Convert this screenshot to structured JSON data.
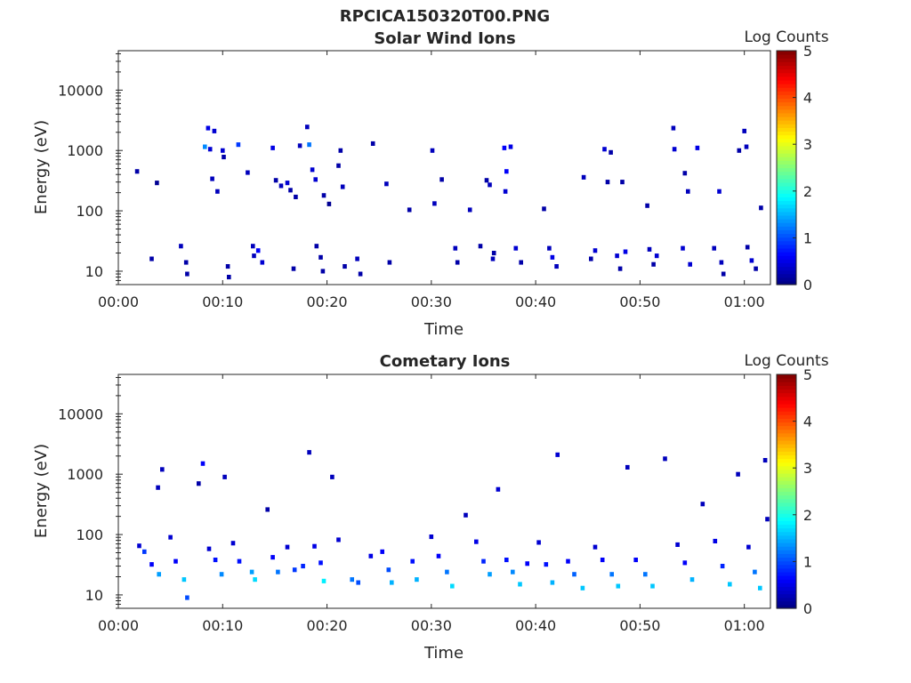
{
  "figure": {
    "title": "RPCICA150320T00.PNG"
  },
  "colormap": {
    "name": "jet",
    "stops": [
      "#00007f",
      "#0000ff",
      "#007fff",
      "#00ffff",
      "#7fff7f",
      "#ffff00",
      "#ff7f00",
      "#ff0000",
      "#7f0000"
    ]
  },
  "chart_data": [
    {
      "type": "heatmap",
      "title": "Solar Wind Ions",
      "xlabel": "Time",
      "ylabel": "Energy (eV)",
      "colorbar_label": "Log Counts",
      "xlim_minutes": [
        0,
        62.5
      ],
      "ylim_eV": [
        6,
        45000
      ],
      "y_scale": "log",
      "x_ticks": [
        "00:00",
        "00:10",
        "00:20",
        "00:30",
        "00:40",
        "00:50",
        "01:00"
      ],
      "y_ticks": [
        "10",
        "100",
        "1000",
        "10000"
      ],
      "clim": [
        0,
        5
      ],
      "colorbar_ticks": [
        "0",
        "1",
        "2",
        "3",
        "4",
        "5"
      ],
      "cells": [
        [
          1.8,
          450,
          0.2
        ],
        [
          3.2,
          16,
          0.2
        ],
        [
          3.7,
          290,
          0.1
        ],
        [
          6.0,
          26,
          0.3
        ],
        [
          6.5,
          14,
          0.2
        ],
        [
          6.6,
          9,
          0.2
        ],
        [
          8.3,
          1150,
          1.3
        ],
        [
          8.6,
          2350,
          0.5
        ],
        [
          8.8,
          1050,
          0.4
        ],
        [
          9.0,
          340,
          0.3
        ],
        [
          9.2,
          2100,
          0.4
        ],
        [
          9.5,
          210,
          0.3
        ],
        [
          10.0,
          1000,
          0.4
        ],
        [
          10.1,
          780,
          0.2
        ],
        [
          10.5,
          12,
          0.2
        ],
        [
          10.6,
          8,
          0.2
        ],
        [
          11.5,
          1250,
          0.9
        ],
        [
          12.4,
          430,
          0.3
        ],
        [
          12.9,
          26,
          0.3
        ],
        [
          13.0,
          18,
          0.3
        ],
        [
          13.4,
          22,
          0.6
        ],
        [
          13.8,
          14,
          0.4
        ],
        [
          14.8,
          1100,
          0.5
        ],
        [
          15.1,
          320,
          0.2
        ],
        [
          15.6,
          260,
          0.3
        ],
        [
          16.2,
          290,
          0.4
        ],
        [
          16.5,
          220,
          0.2
        ],
        [
          16.8,
          11,
          0.2
        ],
        [
          17.0,
          170,
          0.2
        ],
        [
          17.4,
          1200,
          0.3
        ],
        [
          18.1,
          2450,
          0.3
        ],
        [
          18.3,
          1250,
          1.2
        ],
        [
          18.6,
          480,
          0.4
        ],
        [
          18.9,
          330,
          0.4
        ],
        [
          19.0,
          26,
          0.2
        ],
        [
          19.4,
          17,
          0.2
        ],
        [
          19.6,
          10,
          0.2
        ],
        [
          19.7,
          180,
          0.2
        ],
        [
          20.2,
          130,
          0.1
        ],
        [
          21.1,
          560,
          0.2
        ],
        [
          21.3,
          1000,
          0.2
        ],
        [
          21.5,
          250,
          0.3
        ],
        [
          21.7,
          12,
          0.2
        ],
        [
          22.9,
          16,
          0.3
        ],
        [
          23.2,
          9,
          0.2
        ],
        [
          24.4,
          1300,
          0.2
        ],
        [
          25.7,
          280,
          0.3
        ],
        [
          26.0,
          14,
          0.2
        ],
        [
          27.9,
          104,
          0.2
        ],
        [
          30.1,
          1000,
          0.3
        ],
        [
          30.3,
          132,
          0.3
        ],
        [
          31.0,
          330,
          0.2
        ],
        [
          32.3,
          24,
          0.3
        ],
        [
          32.5,
          14,
          0.2
        ],
        [
          33.7,
          104,
          0.3
        ],
        [
          34.7,
          26,
          0.2
        ],
        [
          35.3,
          320,
          0.2
        ],
        [
          35.6,
          270,
          0.3
        ],
        [
          35.9,
          16,
          0.3
        ],
        [
          36.0,
          20,
          0.2
        ],
        [
          37.0,
          1100,
          0.6
        ],
        [
          37.1,
          210,
          0.4
        ],
        [
          37.2,
          450,
          0.6
        ],
        [
          37.6,
          1150,
          0.5
        ],
        [
          38.1,
          24,
          0.4
        ],
        [
          38.6,
          14,
          0.2
        ],
        [
          40.8,
          108,
          0.2
        ],
        [
          41.3,
          24,
          0.3
        ],
        [
          41.6,
          17,
          0.5
        ],
        [
          42.0,
          12,
          0.3
        ],
        [
          44.6,
          360,
          0.3
        ],
        [
          45.3,
          16,
          0.2
        ],
        [
          45.7,
          22,
          0.4
        ],
        [
          46.6,
          1050,
          0.4
        ],
        [
          46.9,
          300,
          0.2
        ],
        [
          47.2,
          930,
          0.2
        ],
        [
          47.8,
          18,
          0.4
        ],
        [
          48.1,
          11,
          0.2
        ],
        [
          48.3,
          300,
          0.2
        ],
        [
          48.6,
          21,
          0.5
        ],
        [
          50.7,
          122,
          0.2
        ],
        [
          50.9,
          23,
          0.3
        ],
        [
          51.3,
          13,
          0.2
        ],
        [
          51.6,
          18,
          0.4
        ],
        [
          53.2,
          2350,
          0.3
        ],
        [
          53.3,
          1050,
          0.4
        ],
        [
          54.1,
          24,
          0.4
        ],
        [
          54.3,
          420,
          0.2
        ],
        [
          54.6,
          210,
          0.3
        ],
        [
          54.8,
          13,
          0.4
        ],
        [
          55.5,
          1100,
          0.5
        ],
        [
          57.1,
          24,
          0.3
        ],
        [
          57.6,
          210,
          0.4
        ],
        [
          57.8,
          14,
          0.3
        ],
        [
          58.0,
          9,
          0.2
        ],
        [
          59.5,
          1000,
          0.2
        ],
        [
          60.0,
          2100,
          0.3
        ],
        [
          60.2,
          1150,
          0.3
        ],
        [
          60.3,
          25,
          0.2
        ],
        [
          60.7,
          15,
          0.4
        ],
        [
          61.1,
          11,
          0.2
        ],
        [
          61.6,
          112,
          0.2
        ]
      ]
    },
    {
      "type": "heatmap",
      "title": "Cometary Ions",
      "xlabel": "Time",
      "ylabel": "Energy (eV)",
      "colorbar_label": "Log Counts",
      "xlim_minutes": [
        0,
        62.5
      ],
      "ylim_eV": [
        6,
        45000
      ],
      "y_scale": "log",
      "x_ticks": [
        "00:00",
        "00:10",
        "00:20",
        "00:30",
        "00:40",
        "00:50",
        "01:00"
      ],
      "y_ticks": [
        "10",
        "100",
        "1000",
        "10000"
      ],
      "clim": [
        0,
        5
      ],
      "colorbar_ticks": [
        "0",
        "1",
        "2",
        "3",
        "4",
        "5"
      ],
      "cells": [
        [
          2.0,
          65,
          0.4
        ],
        [
          2.5,
          52,
          0.9
        ],
        [
          3.2,
          32,
          0.6
        ],
        [
          3.8,
          600,
          0.3
        ],
        [
          3.9,
          22,
          1.4
        ],
        [
          4.2,
          1200,
          0.3
        ],
        [
          5.0,
          90,
          0.4
        ],
        [
          5.5,
          36,
          0.6
        ],
        [
          6.3,
          18,
          1.6
        ],
        [
          6.6,
          9,
          1.0
        ],
        [
          7.7,
          700,
          0.2
        ],
        [
          8.1,
          1500,
          0.6
        ],
        [
          8.7,
          58,
          0.4
        ],
        [
          9.3,
          38,
          0.7
        ],
        [
          9.9,
          22,
          1.3
        ],
        [
          10.2,
          900,
          0.3
        ],
        [
          11.0,
          72,
          0.4
        ],
        [
          11.6,
          36,
          0.7
        ],
        [
          12.8,
          24,
          1.4
        ],
        [
          13.1,
          18,
          1.7
        ],
        [
          14.3,
          260,
          0.2
        ],
        [
          14.8,
          42,
          0.6
        ],
        [
          15.3,
          24,
          1.2
        ],
        [
          16.2,
          62,
          0.4
        ],
        [
          16.9,
          26,
          0.9
        ],
        [
          17.7,
          30,
          0.8
        ],
        [
          18.3,
          2300,
          0.3
        ],
        [
          18.8,
          64,
          0.5
        ],
        [
          19.4,
          34,
          0.7
        ],
        [
          19.7,
          17,
          1.8
        ],
        [
          20.5,
          900,
          0.3
        ],
        [
          21.1,
          82,
          0.4
        ],
        [
          22.4,
          18,
          1.2
        ],
        [
          23.0,
          16,
          1.0
        ],
        [
          24.2,
          44,
          0.5
        ],
        [
          25.3,
          52,
          0.6
        ],
        [
          25.9,
          26,
          1.0
        ],
        [
          26.2,
          16,
          1.5
        ],
        [
          28.2,
          36,
          0.7
        ],
        [
          28.6,
          18,
          1.5
        ],
        [
          30.0,
          92,
          0.4
        ],
        [
          30.7,
          44,
          0.6
        ],
        [
          31.5,
          24,
          1.2
        ],
        [
          32.0,
          14,
          1.7
        ],
        [
          33.3,
          210,
          0.3
        ],
        [
          34.3,
          76,
          0.5
        ],
        [
          35.0,
          36,
          0.8
        ],
        [
          35.6,
          22,
          1.4
        ],
        [
          36.4,
          560,
          0.4
        ],
        [
          37.2,
          38,
          0.7
        ],
        [
          37.8,
          24,
          1.3
        ],
        [
          38.5,
          15,
          1.6
        ],
        [
          39.2,
          33,
          0.6
        ],
        [
          40.3,
          74,
          0.4
        ],
        [
          41.0,
          32,
          0.7
        ],
        [
          41.6,
          16,
          1.5
        ],
        [
          42.1,
          2100,
          0.4
        ],
        [
          43.1,
          36,
          0.6
        ],
        [
          43.7,
          22,
          1.1
        ],
        [
          44.5,
          13,
          1.6
        ],
        [
          45.7,
          62,
          0.4
        ],
        [
          46.4,
          38,
          0.6
        ],
        [
          47.3,
          22,
          1.2
        ],
        [
          47.9,
          14,
          1.6
        ],
        [
          48.8,
          1300,
          0.3
        ],
        [
          49.6,
          38,
          0.6
        ],
        [
          50.5,
          22,
          1.2
        ],
        [
          51.2,
          14,
          1.6
        ],
        [
          52.4,
          1800,
          0.3
        ],
        [
          53.6,
          68,
          0.4
        ],
        [
          54.3,
          34,
          0.6
        ],
        [
          55.0,
          18,
          1.5
        ],
        [
          56.0,
          320,
          0.3
        ],
        [
          57.2,
          78,
          0.5
        ],
        [
          57.9,
          30,
          0.8
        ],
        [
          58.6,
          15,
          1.6
        ],
        [
          59.4,
          1000,
          0.3
        ],
        [
          60.4,
          62,
          0.4
        ],
        [
          61.0,
          24,
          1.2
        ],
        [
          61.5,
          13,
          1.6
        ],
        [
          62.0,
          1700,
          0.3
        ],
        [
          62.2,
          180,
          0.3
        ]
      ]
    }
  ]
}
